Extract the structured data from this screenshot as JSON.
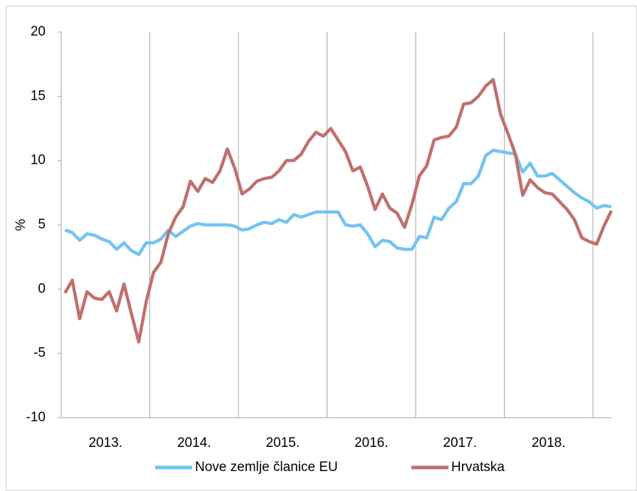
{
  "chart_data": {
    "type": "line",
    "ylabel": "%",
    "categories": [
      null,
      null,
      null,
      null,
      null,
      null,
      "2013.",
      null,
      null,
      null,
      null,
      null,
      null,
      null,
      null,
      null,
      null,
      null,
      "2014.",
      null,
      null,
      null,
      null,
      null,
      null,
      null,
      null,
      null,
      null,
      null,
      "2015.",
      null,
      null,
      null,
      null,
      null,
      null,
      null,
      null,
      null,
      null,
      null,
      "2016.",
      null,
      null,
      null,
      null,
      null,
      null,
      null,
      null,
      null,
      null,
      null,
      "2017.",
      null,
      null,
      null,
      null,
      null,
      null,
      null,
      null,
      null,
      null,
      null,
      "2018.",
      null,
      null,
      null,
      null,
      null,
      null,
      null,
      null
    ],
    "series": [
      {
        "name": "Nove zemlje članice EU",
        "color": "#74c3f2",
        "values": [
          4.6,
          4.4,
          3.8,
          4.3,
          4.2,
          3.9,
          3.7,
          3.1,
          3.6,
          3.0,
          2.7,
          3.6,
          3.6,
          3.9,
          4.6,
          4.1,
          4.5,
          4.9,
          5.1,
          5.0,
          5.0,
          5.0,
          5.0,
          4.9,
          4.6,
          4.7,
          5.0,
          5.2,
          5.1,
          5.4,
          5.2,
          5.8,
          5.6,
          5.8,
          6.0,
          6.0,
          6.0,
          6.0,
          5.0,
          4.9,
          5.0,
          4.3,
          3.3,
          3.8,
          3.7,
          3.2,
          3.1,
          3.1,
          4.1,
          4.0,
          5.6,
          5.4,
          6.3,
          6.8,
          8.2,
          8.2,
          8.8,
          10.4,
          10.8,
          10.7,
          10.6,
          10.5,
          9.1,
          9.8,
          8.8,
          8.8,
          9.0,
          8.5,
          8.0,
          7.5,
          7.1,
          6.8,
          6.3,
          6.5,
          6.4
        ]
      },
      {
        "name": "Hrvatska",
        "color": "#c0706d",
        "values": [
          -0.3,
          0.7,
          -2.3,
          -0.2,
          -0.7,
          -0.8,
          -0.2,
          -1.7,
          0.4,
          -1.9,
          -4.1,
          -1.0,
          1.3,
          2.1,
          4.3,
          5.6,
          6.4,
          8.4,
          7.6,
          8.6,
          8.3,
          9.2,
          10.9,
          9.4,
          7.4,
          7.8,
          8.4,
          8.6,
          8.7,
          9.2,
          10.0,
          10.0,
          10.5,
          11.5,
          12.2,
          11.9,
          12.5,
          11.6,
          10.7,
          9.2,
          9.5,
          8.0,
          6.2,
          7.4,
          6.3,
          5.9,
          4.8,
          6.6,
          8.8,
          9.6,
          11.6,
          11.8,
          11.9,
          12.6,
          14.4,
          14.5,
          15.0,
          15.8,
          16.3,
          13.6,
          12.1,
          10.5,
          7.3,
          8.5,
          7.9,
          7.5,
          7.4,
          6.8,
          6.2,
          5.4,
          4.0,
          3.7,
          3.5,
          4.9,
          6.1
        ]
      }
    ],
    "ylim": [
      -10,
      20
    ],
    "yticks": [
      -10,
      -5,
      0,
      5,
      10,
      15,
      20
    ],
    "legend": "bottom"
  }
}
